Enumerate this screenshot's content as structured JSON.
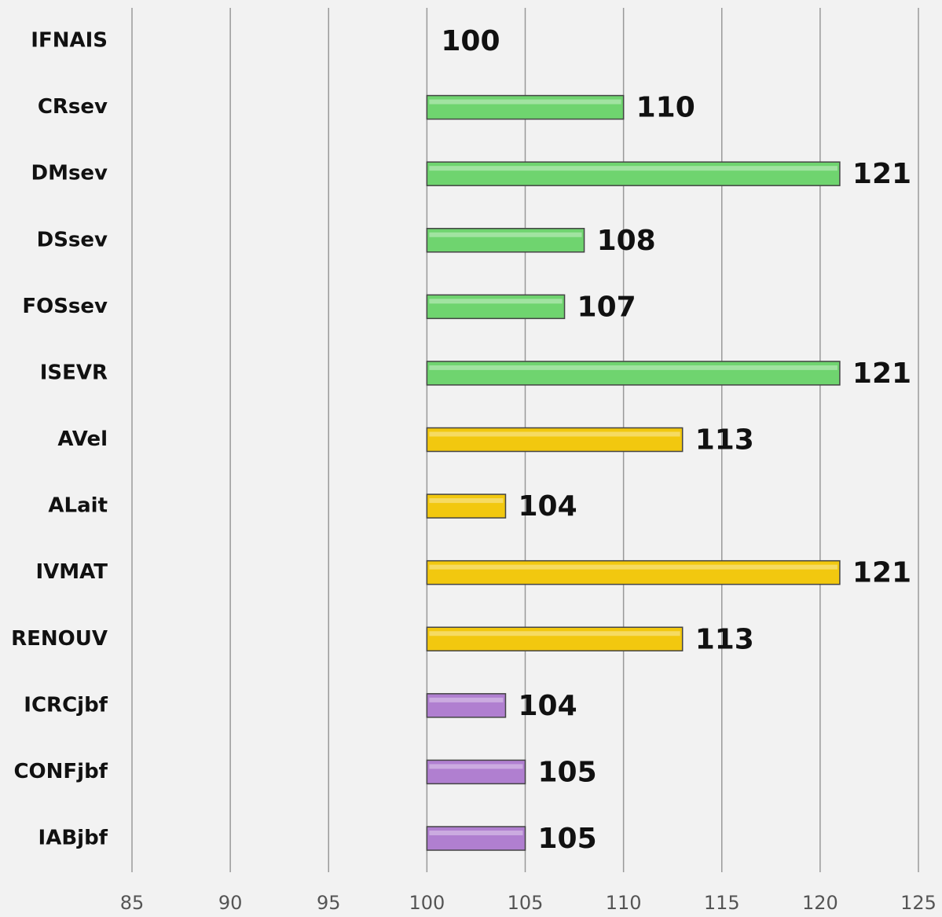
{
  "chart_data": {
    "type": "hbar",
    "categories": [
      "IFNAIS",
      "CRsev",
      "DMsev",
      "DSsev",
      "FOSsev",
      "ISEVR",
      "AVel",
      "ALait",
      "IVMAT",
      "RENOUV",
      "ICRCjbf",
      "CONFjbf",
      "IABjbf"
    ],
    "values": [
      100,
      110,
      121,
      108,
      107,
      121,
      113,
      104,
      121,
      113,
      104,
      105,
      105
    ],
    "colors": [
      "#6fd46f",
      "#6fd46f",
      "#6fd46f",
      "#6fd46f",
      "#6fd46f",
      "#6fd46f",
      "#f2c80f",
      "#f2c80f",
      "#f2c80f",
      "#f2c80f",
      "#b07fd0",
      "#b07fd0",
      "#b07fd0"
    ],
    "base": 100,
    "xlim": [
      85,
      125
    ],
    "xticks": [
      85,
      90,
      95,
      100,
      105,
      110,
      115,
      120,
      125
    ],
    "grid": true
  }
}
